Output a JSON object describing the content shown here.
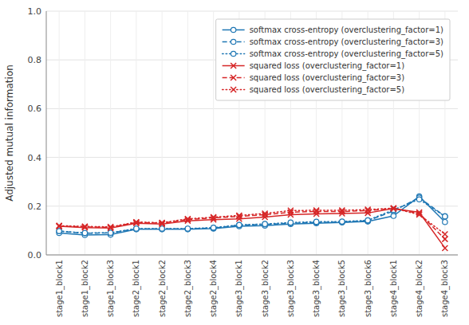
{
  "chart_data": {
    "type": "line",
    "ylabel": "Adjusted mutual information",
    "categories": [
      "stage1_block1",
      "stage1_block2",
      "stage1_block3",
      "stage2_block1",
      "stage2_block2",
      "stage2_block3",
      "stage2_block4",
      "stage3_block1",
      "stage3_block2",
      "stage3_block3",
      "stage3_block4",
      "stage3_block5",
      "stage3_block6",
      "stage4_block1",
      "stage4_block2",
      "stage4_block3"
    ],
    "series": [
      {
        "name": "softmax cross-entropy (overclustering_factor=1)",
        "color": "#1f77b4",
        "marker": "circle",
        "line_style": "solid",
        "values": [
          0.09,
          0.082,
          0.083,
          0.105,
          0.105,
          0.105,
          0.108,
          0.118,
          0.12,
          0.127,
          0.13,
          0.133,
          0.137,
          0.16,
          0.24,
          0.135
        ]
      },
      {
        "name": "softmax cross-entropy (overclustering_factor=3)",
        "color": "#1f77b4",
        "marker": "circle",
        "line_style": "dashed",
        "values": [
          0.097,
          0.089,
          0.09,
          0.107,
          0.107,
          0.107,
          0.11,
          0.122,
          0.125,
          0.13,
          0.133,
          0.135,
          0.14,
          0.18,
          0.235,
          0.158
        ]
      },
      {
        "name": "softmax cross-entropy (overclustering_factor=5)",
        "color": "#1f77b4",
        "marker": "circle",
        "line_style": "dotted",
        "values": [
          0.098,
          0.09,
          0.091,
          0.108,
          0.108,
          0.108,
          0.112,
          0.123,
          0.127,
          0.133,
          0.136,
          0.137,
          0.142,
          0.185,
          0.228,
          0.158
        ]
      },
      {
        "name": "squared loss (overclustering_factor=1)",
        "color": "#d62728",
        "marker": "x",
        "line_style": "solid",
        "values": [
          0.118,
          0.112,
          0.11,
          0.13,
          0.127,
          0.14,
          0.145,
          0.148,
          0.155,
          0.165,
          0.168,
          0.17,
          0.172,
          0.19,
          0.175,
          0.028
        ]
      },
      {
        "name": "squared loss (overclustering_factor=3)",
        "color": "#d62728",
        "marker": "x",
        "line_style": "dashed",
        "values": [
          0.118,
          0.115,
          0.113,
          0.133,
          0.13,
          0.145,
          0.152,
          0.158,
          0.165,
          0.175,
          0.178,
          0.178,
          0.182,
          0.19,
          0.17,
          0.065
        ]
      },
      {
        "name": "squared loss (overclustering_factor=5)",
        "color": "#d62728",
        "marker": "x",
        "line_style": "dotted",
        "values": [
          0.12,
          0.117,
          0.115,
          0.135,
          0.132,
          0.148,
          0.155,
          0.162,
          0.17,
          0.182,
          0.183,
          0.183,
          0.186,
          0.192,
          0.165,
          0.085
        ]
      }
    ],
    "ylim": [
      0.0,
      1.0
    ],
    "yticks": [
      {
        "value": 0,
        "label": "0.0"
      },
      0.2,
      0.4,
      0.6,
      0.8,
      {
        "value": 1,
        "label": "1.0"
      }
    ],
    "grid": true,
    "legend": "upper right"
  }
}
